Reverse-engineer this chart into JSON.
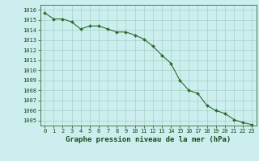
{
  "x": [
    0,
    1,
    2,
    3,
    4,
    5,
    6,
    7,
    8,
    9,
    10,
    11,
    12,
    13,
    14,
    15,
    16,
    17,
    18,
    19,
    20,
    21,
    22,
    23
  ],
  "y": [
    1015.7,
    1015.1,
    1015.1,
    1014.8,
    1014.1,
    1014.4,
    1014.4,
    1014.1,
    1013.8,
    1013.8,
    1013.5,
    1013.1,
    1012.4,
    1011.5,
    1010.7,
    1009.0,
    1008.0,
    1007.7,
    1006.5,
    1006.0,
    1005.7,
    1005.1,
    1004.8,
    1004.6
  ],
  "line_color": "#2d6a2d",
  "marker": "D",
  "marker_size": 2.0,
  "bg_color": "#cceeee",
  "grid_color": "#99ccbb",
  "ylim": [
    1004.5,
    1016.5
  ],
  "xlim": [
    -0.5,
    23.5
  ],
  "yticks": [
    1005,
    1006,
    1007,
    1008,
    1009,
    1010,
    1011,
    1012,
    1013,
    1014,
    1015,
    1016
  ],
  "xticks": [
    0,
    1,
    2,
    3,
    4,
    5,
    6,
    7,
    8,
    9,
    10,
    11,
    12,
    13,
    14,
    15,
    16,
    17,
    18,
    19,
    20,
    21,
    22,
    23
  ],
  "tick_label_fontsize": 5.0,
  "xlabel": "Graphe pression niveau de la mer (hPa)",
  "xlabel_fontsize": 6.5,
  "label_color": "#1a4a1a",
  "spine_color": "#336633"
}
